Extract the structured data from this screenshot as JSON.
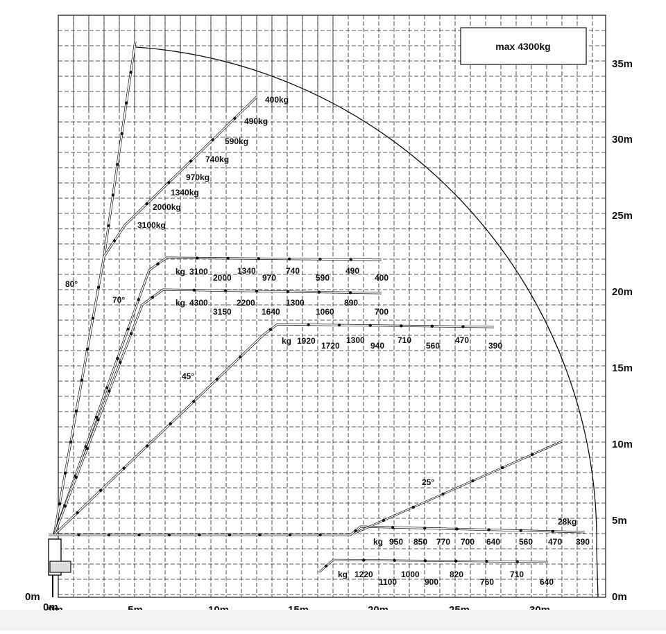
{
  "title": "max 4300kg",
  "units": {
    "origin_x": "0m",
    "origin_y": "0m"
  },
  "x_ticks": [
    "0m",
    "5m",
    "10m",
    "15m",
    "20m",
    "25m",
    "30m"
  ],
  "y_ticks": [
    "35m",
    "30m",
    "25m",
    "20m",
    "15m",
    "10m",
    "5m",
    "0m"
  ],
  "angles": [
    "80°",
    "70°",
    "45°",
    "25°"
  ],
  "chart_data": {
    "type": "load-diagram",
    "x_range": [
      0,
      35
    ],
    "y_range": [
      0,
      37
    ],
    "envelope": "quarter circle, radius ~33.5 m from base at height 4.1 m",
    "configurations": [
      {
        "name": "80° boom, 3100kg",
        "values": [
          "3100kg",
          "2000kg",
          "1340kg",
          "970kg",
          "740kg",
          "590kg",
          "490kg",
          "400kg"
        ]
      },
      {
        "name": "horizontal row at ~22.5 m",
        "values": [
          "kg",
          "3100",
          "2000",
          "1340",
          "970",
          "740",
          "590",
          "490",
          "400"
        ]
      },
      {
        "name": "horizontal row at ~20.5 m",
        "values": [
          "kg",
          "4300",
          "3150",
          "2200",
          "1640",
          "1300",
          "1060",
          "890",
          "700"
        ]
      },
      {
        "name": "45° boom, row at ~17.7 m",
        "values": [
          "kg",
          "1920",
          "1720",
          "1300",
          "940",
          "710",
          "560",
          "470",
          "390"
        ]
      },
      {
        "name": "ground row at ~4.1 m",
        "values": [
          "kg",
          "950",
          "850",
          "770",
          "700",
          "640",
          "560",
          "470",
          "390"
        ]
      },
      {
        "name": "25° boom end",
        "values": [
          "28kg"
        ]
      },
      {
        "name": "lowest row at ~2.2 m",
        "values": [
          "kg",
          "1220",
          "1100",
          "1000",
          "900",
          "820",
          "760",
          "710",
          "640"
        ]
      }
    ]
  },
  "labels": {
    "top_boom": [
      "400kg",
      "490kg",
      "590kg",
      "740kg",
      "970kg",
      "1340kg",
      "2000kg",
      "3100kg"
    ],
    "row_a": [
      "kg",
      "3100",
      "2000",
      "1340",
      "970",
      "740",
      "590",
      "490",
      "400"
    ],
    "row_b": [
      "kg",
      "4300",
      "3150",
      "2200",
      "1640",
      "1300",
      "1060",
      "890",
      "700"
    ],
    "row_c": [
      "kg",
      "1920",
      "1720",
      "1300",
      "940",
      "710",
      "560",
      "470",
      "390"
    ],
    "row_d": [
      "kg",
      "950",
      "850",
      "770",
      "700",
      "640",
      "560",
      "470",
      "390"
    ],
    "row_e": [
      "kg",
      "1220",
      "1100",
      "1000",
      "900",
      "820",
      "760",
      "710",
      "640"
    ],
    "extra": "28kg"
  }
}
